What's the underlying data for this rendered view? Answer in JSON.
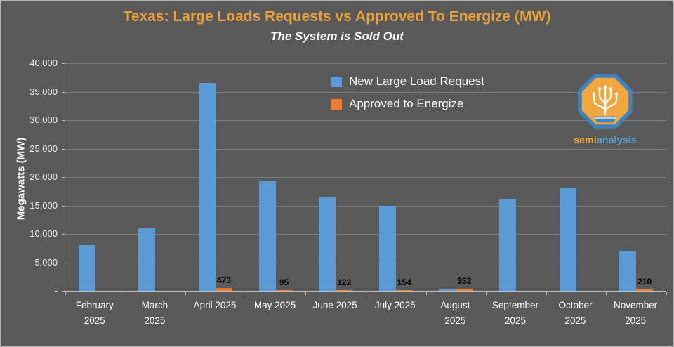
{
  "title": "Texas: Large Loads Requests vs Approved To Energize (MW)",
  "subtitle": "The System is Sold Out",
  "legend": [
    {
      "label": "New Large Load Request",
      "color": "#5B9BD5"
    },
    {
      "label": "Approved to Energize",
      "color": "#ED7D31"
    }
  ],
  "logo": {
    "semi": "semi",
    "analysis": "analysis"
  },
  "colors": {
    "background": "#595959",
    "title": "#E9A23B",
    "text": "#FFFFFF",
    "gridline": "#7F7F7F",
    "axis": "#BFBFBF",
    "bar_blue": "#5B9BD5",
    "bar_orange": "#ED7D31",
    "data_label": "#000000"
  },
  "chart_data": {
    "type": "bar",
    "categories": [
      [
        "February",
        "2025"
      ],
      [
        "March",
        "2025"
      ],
      [
        "April 2025"
      ],
      [
        "May 2025"
      ],
      [
        "June 2025"
      ],
      [
        "July 2025"
      ],
      [
        "August",
        "2025"
      ],
      [
        "September",
        "2025"
      ],
      [
        "October",
        "2025"
      ],
      [
        "November",
        "2025"
      ]
    ],
    "series": [
      {
        "name": "New Large Load Request",
        "color": "#5B9BD5",
        "values": [
          8000,
          11000,
          36500,
          19200,
          16500,
          15000,
          400,
          16000,
          18000,
          7000
        ]
      },
      {
        "name": "Approved to Energize",
        "color": "#ED7D31",
        "values": [
          0,
          0,
          473,
          95,
          122,
          154,
          352,
          0,
          0,
          210
        ]
      }
    ],
    "data_labels": [
      null,
      null,
      "473",
      "95",
      "122",
      "154",
      "352",
      null,
      null,
      "210"
    ],
    "ylabel": "Megawatts (MW)",
    "ylim": [
      0,
      40000
    ],
    "yticks": [
      "40,000",
      "35,000",
      "30,000",
      "25,000",
      "20,000",
      "15,000",
      "10,000",
      "5,000",
      "-"
    ],
    "grid": true,
    "legend_position": "top-center-inside"
  }
}
